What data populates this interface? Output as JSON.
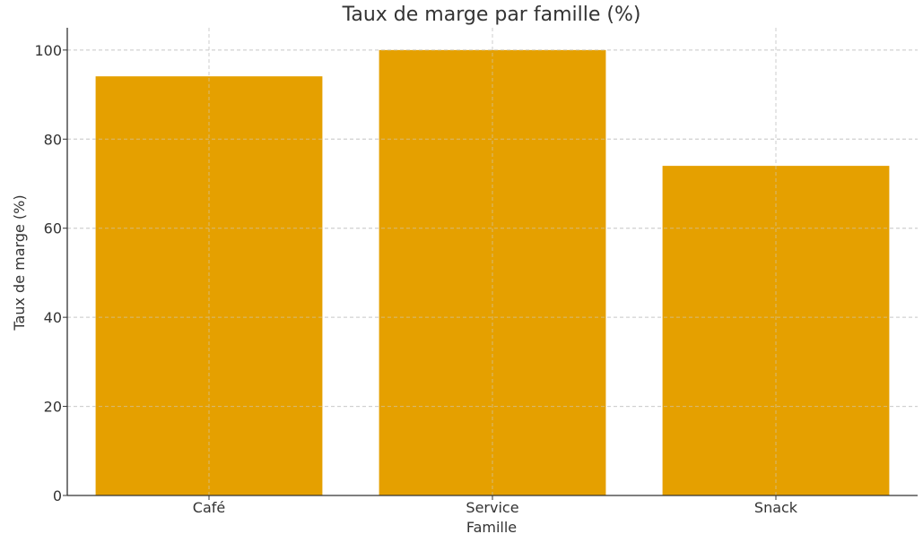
{
  "chart_data": {
    "type": "bar",
    "title": "Taux de marge par famille (%)",
    "xlabel": "Famille",
    "ylabel": "Taux de marge (%)",
    "categories": [
      "Café",
      "Service",
      "Snack"
    ],
    "values": [
      94.1,
      100,
      74
    ],
    "ylim": [
      0,
      105
    ],
    "yticks": [
      0,
      20,
      40,
      60,
      80,
      100
    ],
    "grid": true,
    "legend": "none",
    "bar_color": "#e5a000"
  }
}
